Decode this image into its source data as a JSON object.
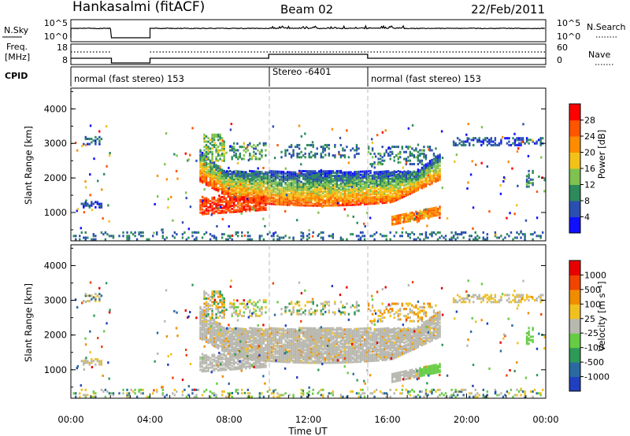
{
  "header": {
    "station": "Hankasalmi (fitACF)",
    "beam": "Beam 02",
    "date": "22/Feb/2011"
  },
  "noise_panel": {
    "left_label": "N.Sky",
    "right_label": "N.Search",
    "left_ticks": [
      "10^5",
      "10^0"
    ],
    "right_ticks": [
      "10^5",
      "10^0"
    ]
  },
  "freq_panel": {
    "left_label_1": "Freq.",
    "left_label_2": "[MHz]",
    "right_label": "Nave",
    "left_ticks": [
      "18",
      "8"
    ],
    "right_ticks": [
      "60",
      "0"
    ]
  },
  "cpid": {
    "label": "CPID",
    "segments": [
      {
        "name": "normal (fast stereo) 153",
        "start": 0,
        "end": 10
      },
      {
        "name": "Stereo -6401",
        "start": 10,
        "end": 15
      },
      {
        "name": "normal (fast stereo) 153",
        "start": 15,
        "end": 24
      }
    ]
  },
  "chart_data": [
    {
      "type": "heatmap",
      "name": "power",
      "ylabel": "Slant Range [km]",
      "y_ticks": [
        "1000",
        "2000",
        "3000",
        "4000"
      ],
      "ylim": [
        180,
        4600
      ],
      "xlim": [
        0,
        24
      ],
      "colorbar": {
        "label": "Power [dB]",
        "ticks": [
          "4",
          "8",
          "12",
          "16",
          "20",
          "24",
          "28"
        ],
        "colors": [
          "#1010ff",
          "#2a4fb0",
          "#2d8a5a",
          "#7fc24f",
          "#f2c21a",
          "#ff8c00",
          "#ff5500",
          "#ff0000"
        ]
      },
      "echo_bands": [
        {
          "t0": 6.5,
          "t1": 18.6,
          "r0": 1300,
          "r1": 2300,
          "level": 18
        },
        {
          "t0": 6.5,
          "t1": 9.8,
          "r0": 1000,
          "r1": 1500,
          "level": 26
        },
        {
          "t0": 16.2,
          "t1": 18.7,
          "r0": 620,
          "r1": 1000,
          "level": 24
        },
        {
          "t0": 0.5,
          "t1": 1.6,
          "r0": 1150,
          "r1": 1300,
          "level": 6
        },
        {
          "t0": 6.8,
          "t1": 7.6,
          "r0": 2600,
          "r1": 3250,
          "level": 14
        },
        {
          "t0": 0.6,
          "t1": 1.6,
          "r0": 3000,
          "r1": 3150,
          "level": 8
        },
        {
          "t0": 19.3,
          "t1": 23.9,
          "r0": 2950,
          "r1": 3150,
          "level": 6
        }
      ]
    },
    {
      "type": "heatmap",
      "name": "velocity",
      "ylabel": "Slant Range [km]",
      "y_ticks": [
        "1000",
        "2000",
        "3000",
        "4000"
      ],
      "ylim": [
        180,
        4600
      ],
      "xlim": [
        0,
        24
      ],
      "xlabel": "Time UT",
      "x_ticks": [
        "00:00",
        "04:00",
        "08:00",
        "12:00",
        "16:00",
        "20:00",
        "00:00"
      ],
      "colorbar": {
        "label": "Velocity [m s⁻¹]",
        "ticks": [
          "1000",
          "500",
          "100",
          "25",
          "-25",
          "-100",
          "-500",
          "-1000"
        ],
        "colors": [
          "#2040c0",
          "#2a6aa0",
          "#2f9a58",
          "#66cc44",
          "#b8b8b0",
          "#f0c020",
          "#f08c00",
          "#f04400",
          "#e80000"
        ]
      }
    }
  ]
}
